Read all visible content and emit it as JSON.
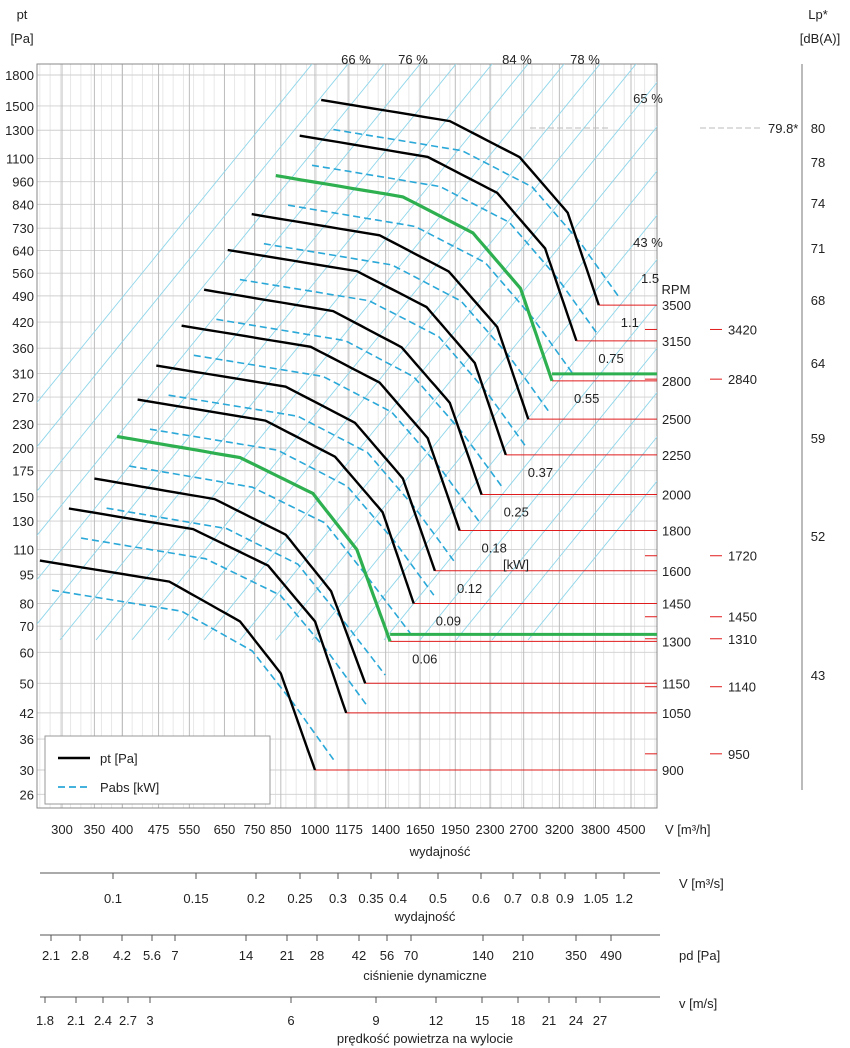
{
  "chart_data": {
    "type": "line",
    "y_axis": {
      "title_line1": "pt",
      "title_line2": "[Pa]",
      "ticks": [
        1800,
        1500,
        1300,
        1100,
        960,
        840,
        730,
        640,
        560,
        490,
        420,
        360,
        310,
        270,
        230,
        200,
        175,
        150,
        130,
        110,
        95,
        80,
        70,
        60,
        50,
        42,
        36,
        30,
        26
      ],
      "scale": "log"
    },
    "x_axis": {
      "title": "wydajność",
      "unit_label": "V [m³/h]",
      "ticks": [
        300,
        350,
        400,
        475,
        550,
        650,
        750,
        850,
        1000,
        1175,
        1400,
        1650,
        1950,
        2300,
        2700,
        3200,
        3800,
        4500
      ],
      "scale": "log"
    },
    "legend": {
      "placement": "bottom-left",
      "items": [
        {
          "label": "pt [Pa]",
          "style": "solid",
          "color": "#000000"
        },
        {
          "label": "Pabs [kW]",
          "style": "dashed",
          "color": "#2aa8d8"
        }
      ]
    },
    "efficiency_labels": [
      "66 %",
      "76 %",
      "84 %",
      "78 %",
      "65 %",
      "43 %"
    ],
    "power_unit_label": "[kW]",
    "rpm_label": "RPM",
    "sound_axis": {
      "title_line1": "Lp*",
      "title_line2": "[dB(A)]",
      "ticks": [
        "80",
        "78",
        "74",
        "71",
        "68",
        "64",
        "59",
        "52",
        "43"
      ],
      "peak_value": "79.8*"
    },
    "series": [
      {
        "rpm": "900",
        "power": "",
        "points": [
          [
            270,
            103
          ],
          [
            500,
            91
          ],
          [
            700,
            72
          ],
          [
            850,
            53
          ],
          [
            1000,
            30
          ]
        ]
      },
      {
        "rpm": "1050",
        "power": "",
        "points": [
          [
            310,
            140
          ],
          [
            560,
            124
          ],
          [
            800,
            100
          ],
          [
            1000,
            72
          ],
          [
            1160,
            42
          ]
        ]
      },
      {
        "rpm": "1150",
        "power": "",
        "points": [
          [
            350,
            167
          ],
          [
            620,
            148
          ],
          [
            870,
            120
          ],
          [
            1080,
            86
          ],
          [
            1270,
            50
          ]
        ]
      },
      {
        "rpm": "1300",
        "power": "0.06",
        "points": [
          [
            390,
            214
          ],
          [
            700,
            189
          ],
          [
            990,
            153
          ],
          [
            1220,
            110
          ],
          [
            1430,
            64
          ]
        ],
        "highlight": true
      },
      {
        "rpm": "1450",
        "power": "0.09",
        "points": [
          [
            430,
            266
          ],
          [
            790,
            235
          ],
          [
            1100,
            190
          ],
          [
            1380,
            137
          ],
          [
            1600,
            80
          ]
        ]
      },
      {
        "rpm": "1600",
        "power": "0.12",
        "points": [
          [
            470,
            325
          ],
          [
            870,
            287
          ],
          [
            1210,
            232
          ],
          [
            1520,
            167
          ],
          [
            1770,
            97
          ]
        ]
      },
      {
        "rpm": "1800",
        "power": "0.18",
        "points": [
          [
            530,
            411
          ],
          [
            980,
            363
          ],
          [
            1360,
            294
          ],
          [
            1710,
            212
          ],
          [
            1990,
            123
          ]
        ]
      },
      {
        "rpm": "2000",
        "power": "0.25",
        "points": [
          [
            590,
            508
          ],
          [
            1090,
            448
          ],
          [
            1510,
            362
          ],
          [
            1900,
            261
          ],
          [
            2210,
            152
          ]
        ]
      },
      {
        "rpm": "2250",
        "power": "0.37",
        "points": [
          [
            660,
            642
          ],
          [
            1220,
            567
          ],
          [
            1700,
            459
          ],
          [
            2140,
            330
          ],
          [
            2480,
            192
          ]
        ]
      },
      {
        "rpm": "2500",
        "power": "",
        "points": [
          [
            740,
            793
          ],
          [
            1360,
            700
          ],
          [
            1890,
            566
          ],
          [
            2380,
            408
          ],
          [
            2760,
            237
          ]
        ]
      },
      {
        "rpm": "2800",
        "power": "0.55",
        "points": [
          [
            830,
            995
          ],
          [
            1520,
            878
          ],
          [
            2120,
            710
          ],
          [
            2660,
            512
          ],
          [
            3090,
            297
          ]
        ],
        "highlight": true
      },
      {
        "rpm": "3150",
        "power": "0.75",
        "points": [
          [
            930,
            1259
          ],
          [
            1710,
            1111
          ],
          [
            2380,
            899
          ],
          [
            2990,
            648
          ],
          [
            3470,
            376
          ]
        ]
      },
      {
        "rpm": "3500",
        "power": "1.1",
        "points": [
          [
            1030,
            1554
          ],
          [
            1900,
            1372
          ],
          [
            2650,
            1109
          ],
          [
            3330,
            800
          ],
          [
            3860,
            464
          ]
        ]
      }
    ],
    "power_top_label": "1.5",
    "duty_points": [
      {
        "rpm": "3420",
        "sound": "68"
      },
      {
        "rpm": "2840",
        "sound": "64"
      },
      {
        "rpm": "1720",
        "sound": "52"
      },
      {
        "rpm": "1450",
        "sound": ""
      },
      {
        "rpm": "1310",
        "sound": ""
      },
      {
        "rpm": "1140",
        "sound": "43"
      },
      {
        "rpm": "950",
        "sound": ""
      }
    ],
    "secondary_scales": [
      {
        "name": "flow_m3s",
        "unit_label": "V  [m³/s]",
        "title": "wydajność",
        "ticks": [
          "0.1",
          "0.15",
          "0.2",
          "0.25",
          "0.3",
          "0.35",
          "0.4",
          "0.5",
          "0.6",
          "0.7",
          "0.8",
          "0.9",
          "1.05",
          "1.2"
        ]
      },
      {
        "name": "pd",
        "unit_label": "pd  [Pa]",
        "title": "ciśnienie dynamiczne",
        "ticks": [
          "2.1",
          "2.8",
          "4.2",
          "5.6",
          "7",
          "14",
          "21",
          "28",
          "42",
          "56",
          "70",
          "140",
          "210",
          "350",
          "490"
        ]
      },
      {
        "name": "velocity",
        "unit_label": "v  [m/s]",
        "title": "prędkość powietrza na wylocie",
        "ticks": [
          "1.8",
          "2.1",
          "2.4",
          "2.7",
          "3",
          "6",
          "9",
          "12",
          "15",
          "18",
          "21",
          "24",
          "27"
        ]
      }
    ]
  }
}
